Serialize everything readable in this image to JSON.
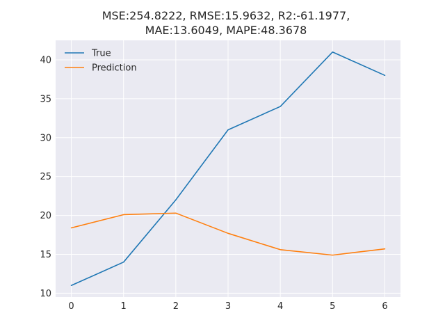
{
  "chart_data": {
    "type": "line",
    "title_lines": [
      "MSE:254.8222, RMSE:15.9632, R2:-61.1977,",
      "MAE:13.6049, MAPE:48.3678"
    ],
    "xlabel": "",
    "ylabel": "",
    "x": [
      0,
      1,
      2,
      3,
      4,
      5,
      6
    ],
    "xticks": [
      "0",
      "1",
      "2",
      "3",
      "4",
      "5",
      "6"
    ],
    "yticks": [
      "10",
      "15",
      "20",
      "25",
      "30",
      "35",
      "40"
    ],
    "xlim": [
      -0.3,
      6.3
    ],
    "ylim": [
      9.5,
      42.5
    ],
    "grid": true,
    "legend_position": "top-left",
    "series": [
      {
        "name": "True",
        "color": "#1f77b4",
        "values": [
          11.0,
          14.0,
          22.0,
          31.0,
          34.0,
          41.0,
          38.0
        ]
      },
      {
        "name": "Prediction",
        "color": "#ff7f0e",
        "values": [
          18.4,
          20.1,
          20.3,
          17.7,
          15.6,
          14.9,
          15.7
        ]
      }
    ]
  }
}
